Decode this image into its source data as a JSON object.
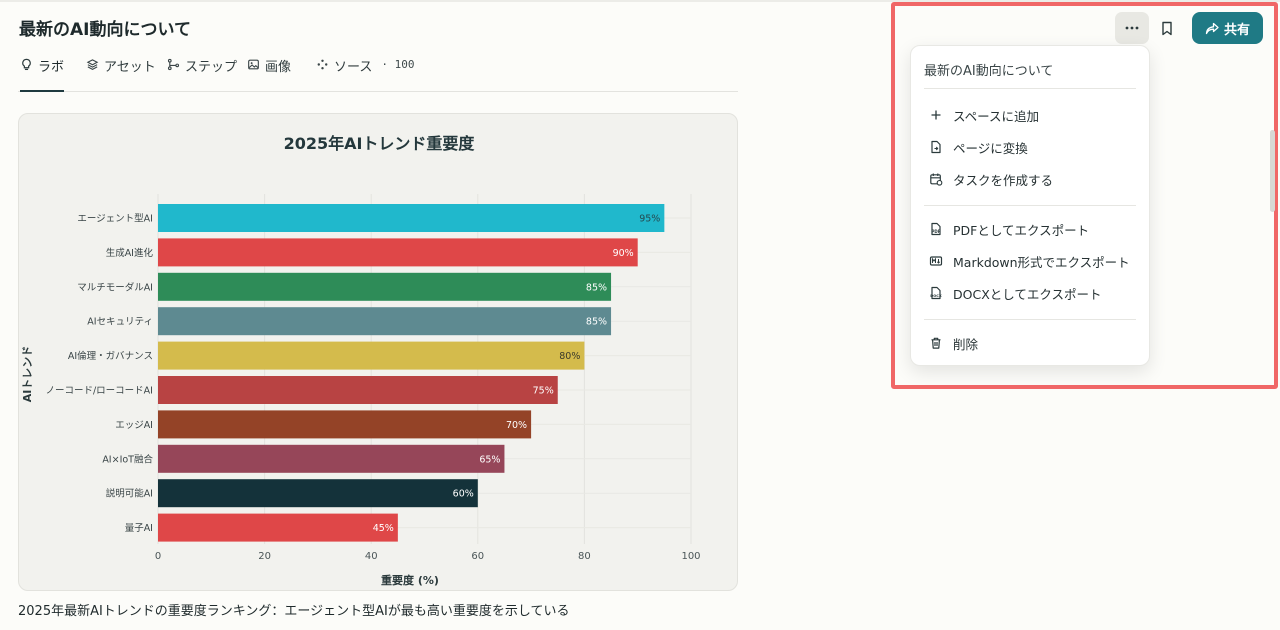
{
  "page": {
    "title": "最新のAI動向について"
  },
  "tabs": [
    {
      "label": "ラボ",
      "icon": "lightbulb-icon"
    },
    {
      "label": "アセット",
      "icon": "layers-icon"
    },
    {
      "label": "ステップ",
      "icon": "steps-icon"
    },
    {
      "label": "画像",
      "icon": "image-icon"
    },
    {
      "label": "ソース",
      "count": "· 100",
      "icon": "sources-icon"
    }
  ],
  "toolbar": {
    "more_label": "···",
    "share_label": "共有"
  },
  "menu": {
    "header": "最新のAI動向について",
    "items": [
      {
        "label": "スペースに追加",
        "icon": "plus-icon"
      },
      {
        "label": "ページに変換",
        "icon": "file-convert-icon"
      },
      {
        "label": "タスクを作成する",
        "icon": "calendar-task-icon"
      },
      {
        "label": "PDFとしてエクスポート",
        "icon": "pdf-icon"
      },
      {
        "label": "Markdown形式でエクスポート",
        "icon": "markdown-icon"
      },
      {
        "label": "DOCXとしてエクスポート",
        "icon": "docx-icon"
      },
      {
        "label": "削除",
        "icon": "trash-icon"
      }
    ]
  },
  "chart_data": {
    "type": "bar",
    "orientation": "horizontal",
    "title": "2025年AIトレンド重要度",
    "xlabel": "重要度 (%)",
    "ylabel": "AIトレンド",
    "xlim": [
      0,
      100
    ],
    "xticks": [
      "0",
      "20",
      "40",
      "60",
      "80",
      "100"
    ],
    "categories": [
      "エージェント型AI",
      "生成AI進化",
      "マルチモーダルAI",
      "AIセキュリティ",
      "AI倫理・ガバナンス",
      "ノーコード/ローコードAI",
      "エッジAI",
      "AI×IoT融合",
      "説明可能AI",
      "量子AI"
    ],
    "values": [
      95,
      90,
      85,
      85,
      80,
      75,
      70,
      65,
      60,
      45
    ],
    "value_labels": [
      "95%",
      "90%",
      "85%",
      "85%",
      "80%",
      "75%",
      "70%",
      "65%",
      "60%",
      "45%"
    ],
    "colors": [
      "#20b8cc",
      "#df4748",
      "#2e8c58",
      "#5e8a91",
      "#d4bb4c",
      "#b84343",
      "#944327",
      "#964659",
      "#14323a",
      "#df4748"
    ],
    "label_colors": [
      "#244a50",
      "#ffffff",
      "#ffffff",
      "#ffffff",
      "#3a3a2a",
      "#ffffff",
      "#ffffff",
      "#ffffff",
      "#ffffff",
      "#ffffff"
    ],
    "grid": true
  },
  "caption": "2025年最新AIトレンドの重要度ランキング：エージェント型AIが最も高い重要度を示している"
}
